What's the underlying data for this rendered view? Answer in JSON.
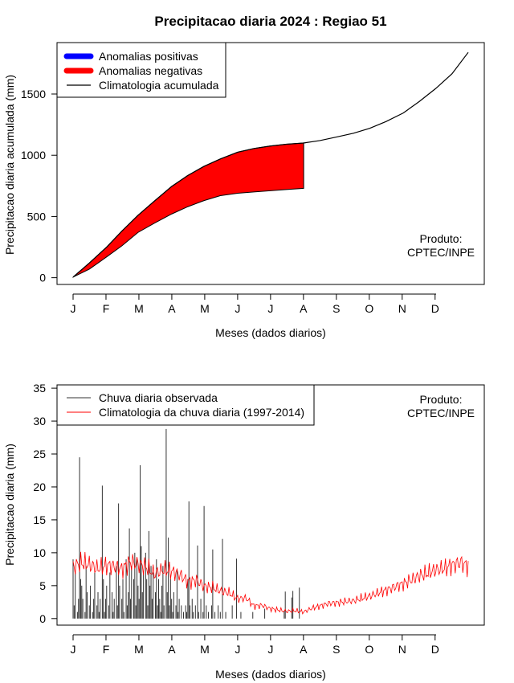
{
  "title": "Precipitacao diaria 2024 : Regiao 51",
  "product_note": {
    "line1": "Produto:",
    "line2": "CPTEC/INPE"
  },
  "colors": {
    "positive": "#0000ff",
    "negative": "#ff0000",
    "climatology": "#000000",
    "daily_obs": "#333333",
    "daily_clim": "#ff0000"
  },
  "chart_data": [
    {
      "type": "area",
      "ylabel": "Precipitacao diaria acumulada (mm)",
      "xlabel": "Meses (dados diarios)",
      "x_ticks": [
        "J",
        "F",
        "M",
        "A",
        "M",
        "J",
        "J",
        "A",
        "S",
        "O",
        "N",
        "D"
      ],
      "y_ticks": [
        0,
        500,
        1000,
        1500
      ],
      "xlim": [
        1,
        366
      ],
      "ylim": [
        -55,
        1920
      ],
      "legend": {
        "position": "top-left",
        "entries": [
          {
            "label": "Anomalias positivas",
            "color": "#0000ff"
          },
          {
            "label": "Anomalias negativas",
            "color": "#ff0000"
          },
          {
            "label": "Climatologia acumulada",
            "color": "#000000"
          }
        ]
      },
      "climatology_cumulative": {
        "day": [
          1,
          16,
          32,
          46,
          61,
          76,
          92,
          107,
          122,
          137,
          153,
          168,
          183,
          198,
          214,
          229,
          245,
          260,
          275,
          290,
          306,
          321,
          336,
          351,
          366
        ],
        "value": [
          5,
          120,
          250,
          380,
          510,
          625,
          745,
          835,
          910,
          970,
          1025,
          1055,
          1075,
          1090,
          1100,
          1120,
          1150,
          1180,
          1220,
          1275,
          1345,
          1440,
          1545,
          1665,
          1840
        ]
      },
      "observed_cumulative": {
        "day": [
          1,
          16,
          32,
          46,
          61,
          76,
          92,
          107,
          122,
          137,
          153,
          168,
          183,
          198,
          214,
          214
        ],
        "value": [
          5,
          70,
          170,
          260,
          370,
          445,
          520,
          580,
          630,
          670,
          690,
          700,
          710,
          720,
          730,
          730
        ]
      }
    },
    {
      "type": "bar",
      "ylabel": "Precipitacao diaria (mm)",
      "xlabel": "Meses (dados diarios)",
      "x_ticks": [
        "J",
        "F",
        "M",
        "A",
        "M",
        "J",
        "J",
        "A",
        "S",
        "O",
        "N",
        "D"
      ],
      "y_ticks": [
        0,
        5,
        10,
        15,
        20,
        25,
        30,
        35
      ],
      "xlim": [
        1,
        366
      ],
      "ylim": [
        -1,
        35.5
      ],
      "legend": {
        "position": "top-left",
        "entries": [
          {
            "label": "Chuva diaria observada",
            "color": "#333333"
          },
          {
            "label": "Climatologia da chuva diaria (1997-2014)",
            "color": "#ff0000"
          }
        ]
      },
      "observed_daily": {
        "start_day": 1,
        "values": [
          9,
          2,
          7,
          0,
          1,
          3,
          24.5,
          6,
          5,
          3,
          0,
          1,
          8,
          4,
          0,
          2,
          5,
          0,
          1,
          3,
          7,
          0,
          2,
          4,
          1,
          3,
          0,
          20.2,
          6,
          1,
          3,
          5,
          0,
          2,
          7,
          0,
          4,
          1,
          3,
          0,
          8,
          2,
          17.5,
          5,
          0,
          3,
          6,
          1,
          0,
          9,
          2,
          4,
          13.7,
          3,
          8,
          0,
          6,
          10,
          2,
          9,
          5,
          3,
          23.3,
          11,
          4,
          7,
          0,
          10,
          6,
          2,
          13.3,
          5,
          8,
          3,
          7,
          0,
          4,
          9,
          2,
          6,
          3,
          1,
          5,
          8,
          2,
          0,
          28.8,
          4,
          12.3,
          2,
          6,
          3,
          1,
          4,
          0,
          2,
          7.5,
          1,
          3,
          0,
          2,
          0,
          1,
          0,
          2,
          1,
          6,
          17.8,
          2,
          0,
          3,
          1,
          0,
          2,
          0,
          11.1,
          1,
          0,
          3,
          0,
          1,
          17.1,
          0,
          2,
          0,
          1,
          0,
          0,
          2,
          10.5,
          0,
          1,
          0,
          0,
          2,
          0,
          1,
          0,
          12.1,
          0,
          0,
          1,
          0,
          0,
          0,
          0,
          0,
          2,
          0,
          0,
          0,
          9.1,
          0,
          0,
          0,
          1,
          0,
          0,
          0,
          0,
          0,
          0,
          0,
          0,
          0,
          0,
          1,
          0,
          0,
          0,
          0,
          0,
          0,
          0,
          0,
          0,
          0,
          1.5,
          0,
          0,
          0,
          0,
          0,
          0,
          0,
          0,
          0,
          0,
          0,
          0,
          0,
          0,
          0,
          0,
          0,
          1.2,
          4.1,
          0,
          0,
          0,
          0,
          0,
          3.2,
          4.2,
          0,
          0,
          0,
          0,
          0,
          4.7,
          0,
          0,
          0,
          0,
          0,
          0,
          0,
          0,
          0,
          0,
          0,
          0,
          0,
          0,
          0
        ]
      },
      "climatology_daily": {
        "day": [
          1,
          8,
          16,
          24,
          32,
          40,
          46,
          54,
          61,
          69,
          76,
          84,
          92,
          100,
          107,
          115,
          122,
          130,
          137,
          145,
          153,
          161,
          168,
          176,
          183,
          191,
          198,
          206,
          214,
          222,
          229,
          237,
          245,
          253,
          260,
          268,
          275,
          283,
          290,
          298,
          306,
          314,
          321,
          329,
          336,
          344,
          351,
          359,
          366
        ],
        "value": [
          7.8,
          8.5,
          8.2,
          7.6,
          8.1,
          7.9,
          7.5,
          8.6,
          8.3,
          7.8,
          6.8,
          7.4,
          7.2,
          6.6,
          5.6,
          5.8,
          4.9,
          4.7,
          4.2,
          3.9,
          3.0,
          3.1,
          1.9,
          2.0,
          1.5,
          1.3,
          1.1,
          1.2,
          1.0,
          1.6,
          1.9,
          2.3,
          2.4,
          2.6,
          2.7,
          3.1,
          3.4,
          3.9,
          4.3,
          4.8,
          5.3,
          5.9,
          6.5,
          6.9,
          7.4,
          7.6,
          8.1,
          8.5,
          7.9
        ]
      }
    }
  ]
}
